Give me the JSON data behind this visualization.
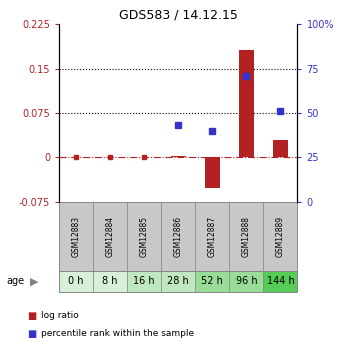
{
  "title": "GDS583 / 14.12.15",
  "samples": [
    "GSM12883",
    "GSM12884",
    "GSM12885",
    "GSM12886",
    "GSM12887",
    "GSM12888",
    "GSM12889"
  ],
  "ages": [
    "0 h",
    "8 h",
    "16 h",
    "28 h",
    "52 h",
    "96 h",
    "144 h"
  ],
  "log_ratio": [
    0.0,
    0.0,
    0.0,
    0.002,
    -0.052,
    0.182,
    0.03
  ],
  "percentile_rank_pct": [
    null,
    null,
    null,
    43,
    40,
    71,
    51
  ],
  "ylim_left": [
    -0.075,
    0.225
  ],
  "ylim_right": [
    0,
    100
  ],
  "yticks_left": [
    -0.075,
    0,
    0.075,
    0.15,
    0.225
  ],
  "yticks_right": [
    0,
    25,
    50,
    75,
    100
  ],
  "ytick_labels_left": [
    "-0.075",
    "0",
    "0.075",
    "0.15",
    "0.225"
  ],
  "ytick_labels_right": [
    "0",
    "25",
    "50",
    "75",
    "100%"
  ],
  "hlines": [
    0.075,
    0.15
  ],
  "bar_color": "#b22222",
  "square_color": "#3333cc",
  "zero_line_color": "#b22222",
  "age_bg_colors": [
    "#d8f0d8",
    "#d8f0d8",
    "#c0e8c0",
    "#c0e8c0",
    "#98dc98",
    "#98dc98",
    "#55cc55"
  ],
  "sample_bg_color": "#c8c8c8",
  "legend_red_label": "log ratio",
  "legend_blue_label": "percentile rank within the sample",
  "figure_bg": "#ffffff"
}
